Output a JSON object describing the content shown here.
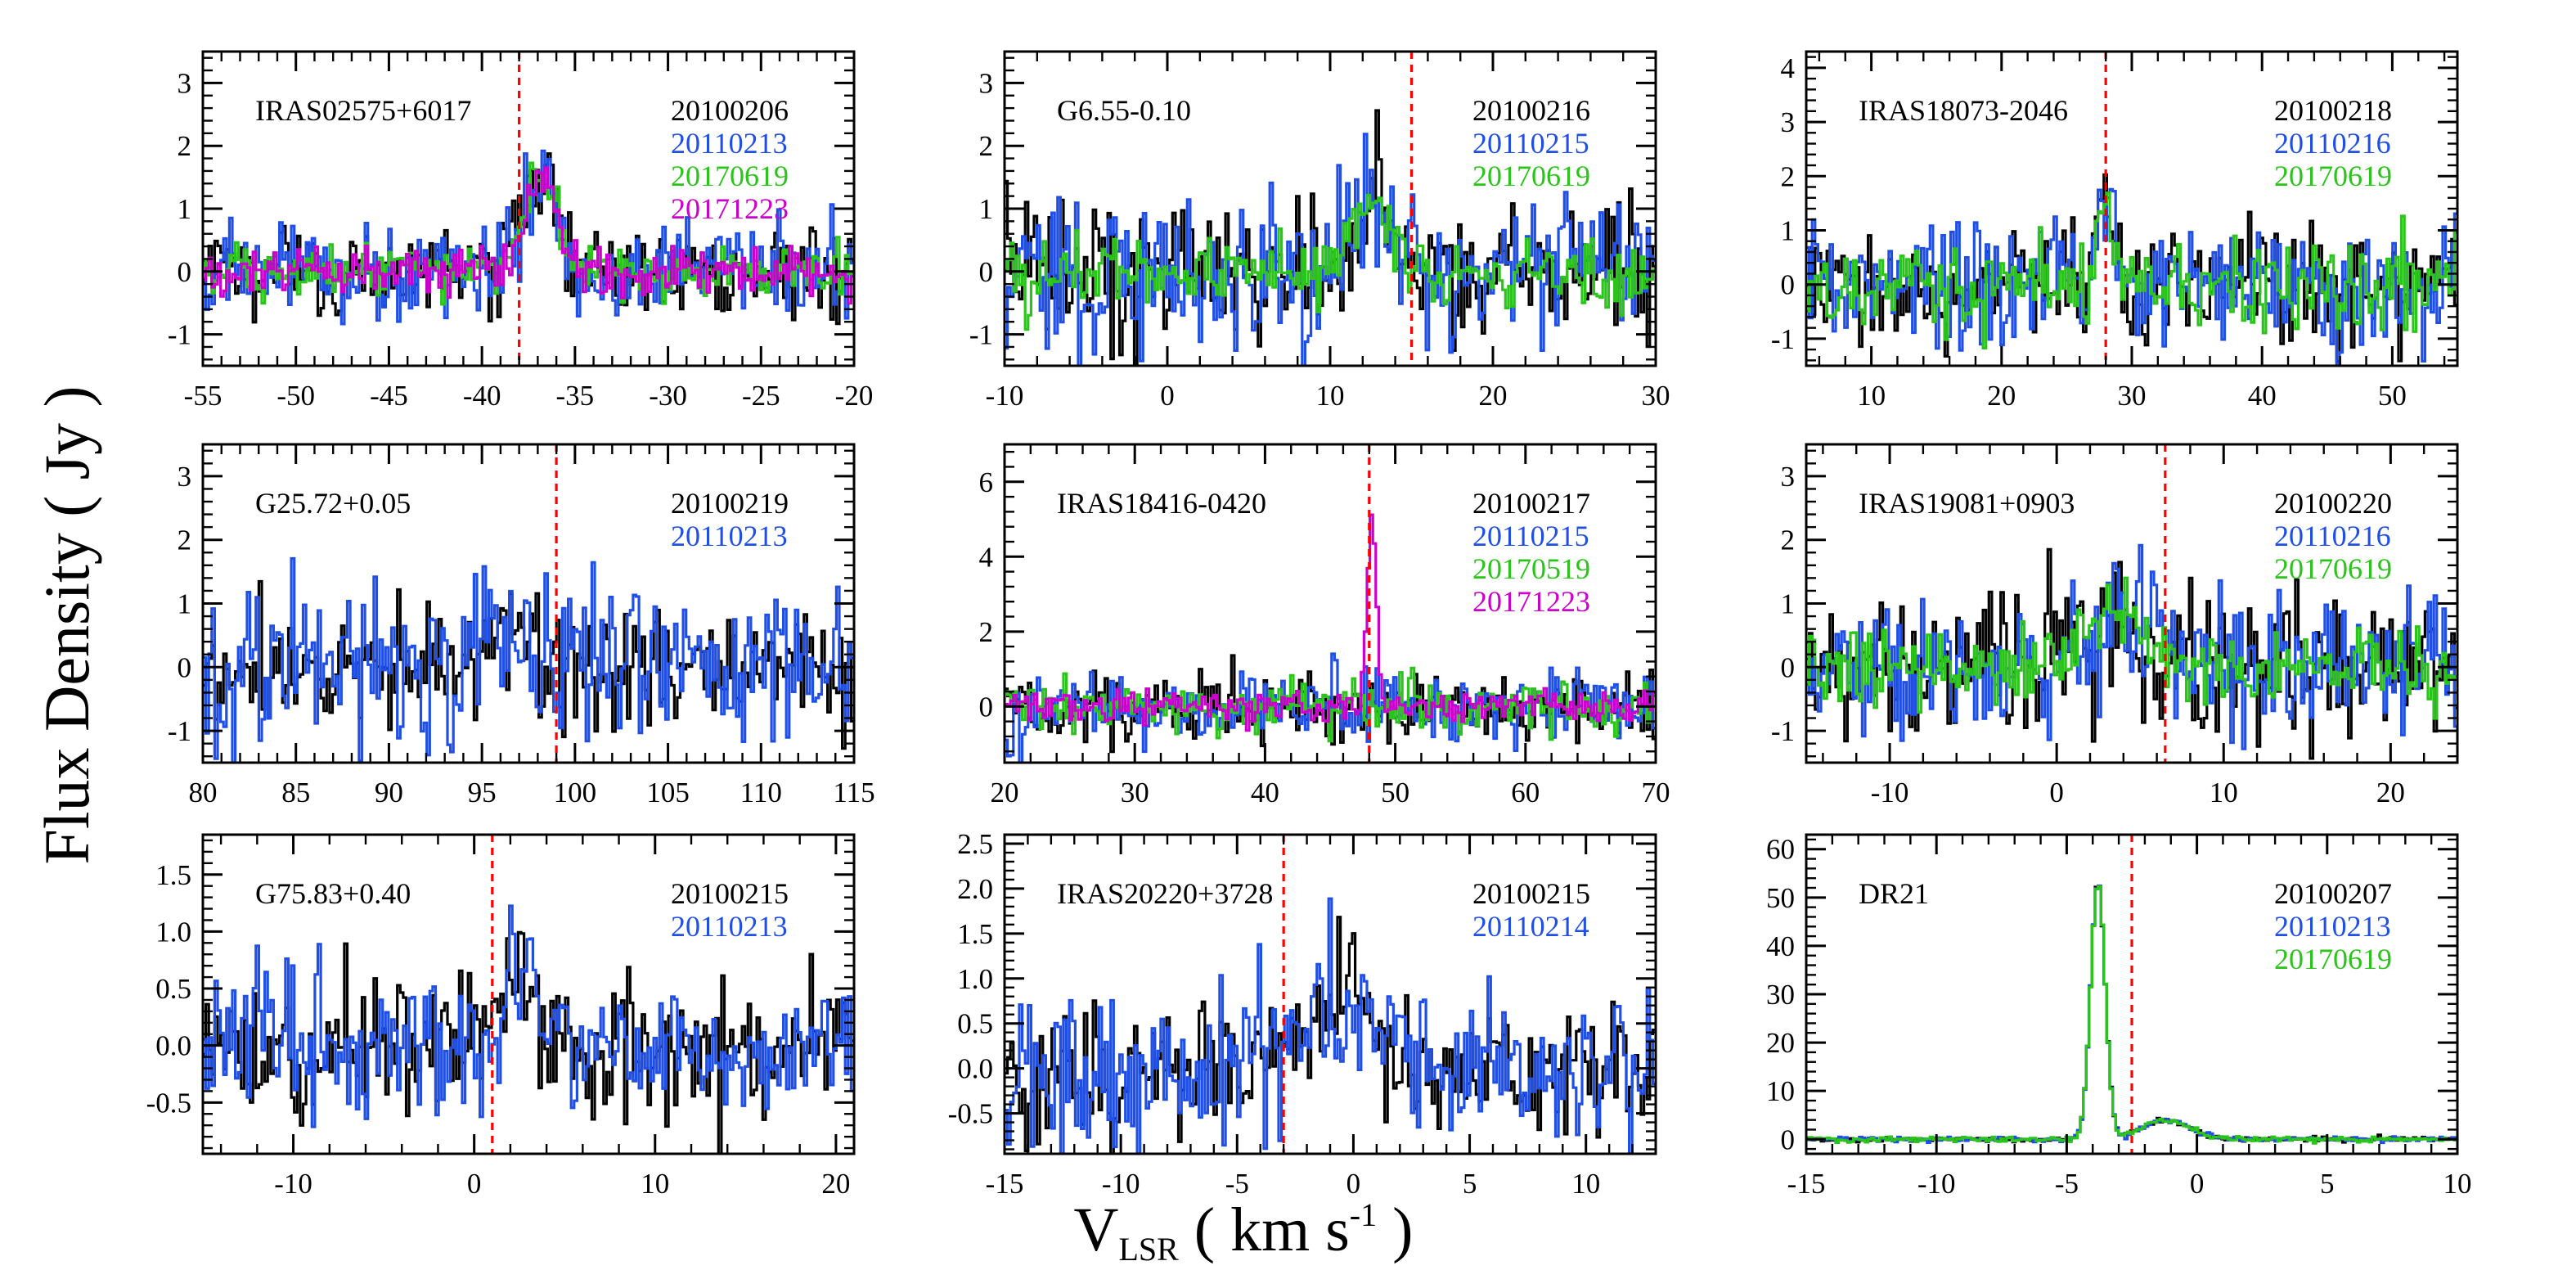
{
  "figure": {
    "ylabel": "Flux Density ( Jy )",
    "xlabel_main": "V",
    "xlabel_sub": "LSR",
    "xlabel_rest": " ( km s",
    "xlabel_sup": "-1",
    "xlabel_end": " )"
  },
  "colors": {
    "black": "#000000",
    "blue": "#1f4fe6",
    "green": "#2bc41b",
    "magenta": "#cc00cc",
    "marker": "#ff0000"
  },
  "chart_data": [
    {
      "type": "line",
      "source": "IRAS02575+6017",
      "xlim": [
        -55,
        -20
      ],
      "ylim": [
        -1.5,
        3.5
      ],
      "xticks": [
        -55,
        -50,
        -45,
        -40,
        -35,
        -30,
        -25,
        -20
      ],
      "xtick_labels": [
        "-55",
        "-50",
        "-45",
        "-40",
        "-35",
        "-30",
        "-25",
        "-20"
      ],
      "yticks": [
        -1,
        0,
        1,
        2,
        3
      ],
      "ytick_labels": [
        "-1",
        "0",
        "1",
        "2",
        "3"
      ],
      "vmarker": -38,
      "series": [
        {
          "name": "20100206",
          "color": "black",
          "noise": 0.35
        },
        {
          "name": "20110213",
          "color": "blue",
          "noise": 0.38
        },
        {
          "name": "20170619",
          "color": "green",
          "noise": 0.2
        },
        {
          "name": "20171223",
          "color": "magenta",
          "noise": 0.18
        }
      ],
      "peaks": [
        {
          "center": -36.8,
          "width": 0.9,
          "amp": 1.5
        }
      ]
    },
    {
      "type": "line",
      "source": "G6.55-0.10",
      "xlim": [
        -10,
        30
      ],
      "ylim": [
        -1.5,
        3.5
      ],
      "xticks": [
        -10,
        0,
        10,
        20,
        30
      ],
      "xtick_labels": [
        "-10",
        "0",
        "10",
        "20",
        "30"
      ],
      "yticks": [
        -1,
        0,
        1,
        2,
        3
      ],
      "ytick_labels": [
        "-1",
        "0",
        "1",
        "2",
        "3"
      ],
      "vmarker": 15,
      "series": [
        {
          "name": "20100216",
          "color": "black",
          "noise": 0.55
        },
        {
          "name": "20110215",
          "color": "blue",
          "noise": 0.6
        },
        {
          "name": "20170619",
          "color": "green",
          "noise": 0.3
        }
      ],
      "peaks": [
        {
          "center": 12.5,
          "width": 1.2,
          "amp": 1.0
        }
      ]
    },
    {
      "type": "line",
      "source": "IRAS18073-2046",
      "xlim": [
        5,
        55
      ],
      "ylim": [
        -1.5,
        4.3
      ],
      "xticks": [
        10,
        20,
        30,
        40,
        50
      ],
      "xtick_labels": [
        "10",
        "20",
        "30",
        "40",
        "50"
      ],
      "yticks": [
        -1,
        0,
        1,
        2,
        3,
        4
      ],
      "ytick_labels": [
        "-1",
        "0",
        "1",
        "2",
        "3",
        "4"
      ],
      "vmarker": 28,
      "series": [
        {
          "name": "20100218",
          "color": "black",
          "noise": 0.5
        },
        {
          "name": "20110216",
          "color": "blue",
          "noise": 0.65
        },
        {
          "name": "20170619",
          "color": "green",
          "noise": 0.4
        }
      ],
      "peaks": [
        {
          "center": 27.8,
          "width": 0.6,
          "amp": 1.4
        }
      ]
    },
    {
      "type": "line",
      "source": "G25.72+0.05",
      "xlim": [
        80,
        115
      ],
      "ylim": [
        -1.5,
        3.5
      ],
      "xticks": [
        80,
        85,
        90,
        95,
        100,
        105,
        110,
        115
      ],
      "xtick_labels": [
        "80",
        "85",
        "90",
        "95",
        "100",
        "105",
        "110",
        "115"
      ],
      "yticks": [
        -1,
        0,
        1,
        2,
        3
      ],
      "ytick_labels": [
        "-1",
        "0",
        "1",
        "2",
        "3"
      ],
      "vmarker": 99,
      "series": [
        {
          "name": "20100219",
          "color": "black",
          "noise": 0.45
        },
        {
          "name": "20110213",
          "color": "blue",
          "noise": 0.7
        }
      ],
      "peaks": [
        {
          "center": 96.5,
          "width": 0.8,
          "amp": 0.8
        }
      ]
    },
    {
      "type": "line",
      "source": "IRAS18416-0420",
      "xlim": [
        20,
        70
      ],
      "ylim": [
        -1.5,
        7
      ],
      "xticks": [
        20,
        30,
        40,
        50,
        60,
        70
      ],
      "xtick_labels": [
        "20",
        "30",
        "40",
        "50",
        "60",
        "70"
      ],
      "yticks": [
        0,
        2,
        4,
        6
      ],
      "ytick_labels": [
        "0",
        "2",
        "4",
        "6"
      ],
      "vmarker": 48,
      "series": [
        {
          "name": "20100217",
          "color": "black",
          "noise": 0.45
        },
        {
          "name": "20110215",
          "color": "blue",
          "noise": 0.5
        },
        {
          "name": "20170519",
          "color": "green",
          "noise": 0.35
        },
        {
          "name": "20171223",
          "color": "magenta",
          "noise": 0.2
        }
      ],
      "peaks": [
        {
          "center": 48.2,
          "width": 0.35,
          "amp": 5.1,
          "only": [
            "magenta"
          ]
        }
      ]
    },
    {
      "type": "line",
      "source": "IRAS19081+0903",
      "xlim": [
        -15,
        24
      ],
      "ylim": [
        -1.5,
        3.5
      ],
      "xticks": [
        -10,
        0,
        10,
        20
      ],
      "xtick_labels": [
        "-10",
        "0",
        "10",
        "20"
      ],
      "yticks": [
        -1,
        0,
        1,
        2,
        3
      ],
      "ytick_labels": [
        "-1",
        "0",
        "1",
        "2",
        "3"
      ],
      "vmarker": 6.5,
      "series": [
        {
          "name": "20100220",
          "color": "black",
          "noise": 0.6
        },
        {
          "name": "20110216",
          "color": "blue",
          "noise": 0.55
        },
        {
          "name": "20170619",
          "color": "green",
          "noise": 0.3
        }
      ],
      "peaks": [
        {
          "center": 3.5,
          "width": 2.0,
          "amp": 0.8
        }
      ]
    },
    {
      "type": "line",
      "source": "G75.83+0.40",
      "xlim": [
        -15,
        21
      ],
      "ylim": [
        -0.95,
        1.85
      ],
      "xticks": [
        -10,
        0,
        10,
        20
      ],
      "xtick_labels": [
        "-10",
        "0",
        "10",
        "20"
      ],
      "yticks": [
        -0.5,
        0.0,
        0.5,
        1.0,
        1.5
      ],
      "ytick_labels": [
        "-0.5",
        "0.0",
        "0.5",
        "1.0",
        "1.5"
      ],
      "vmarker": 1,
      "series": [
        {
          "name": "20100215",
          "color": "black",
          "noise": 0.3
        },
        {
          "name": "20110213",
          "color": "blue",
          "noise": 0.3
        }
      ],
      "peaks": [
        {
          "center": 2.8,
          "width": 1.0,
          "amp": 0.7
        }
      ]
    },
    {
      "type": "line",
      "source": "IRAS20220+3728",
      "xlim": [
        -15,
        13
      ],
      "ylim": [
        -0.95,
        2.6
      ],
      "xticks": [
        -15,
        -10,
        -5,
        0,
        5,
        10
      ],
      "xtick_labels": [
        "-15",
        "-10",
        "-5",
        "0",
        "5",
        "10"
      ],
      "yticks": [
        -0.5,
        0.0,
        0.5,
        1.0,
        1.5,
        2.0,
        2.5
      ],
      "ytick_labels": [
        "-0.5",
        "0.0",
        "0.5",
        "1.0",
        "1.5",
        "2.0",
        "2.5"
      ],
      "vmarker": -3,
      "series": [
        {
          "name": "20100215",
          "color": "black",
          "noise": 0.4
        },
        {
          "name": "20110214",
          "color": "blue",
          "noise": 0.45
        }
      ],
      "peaks": [
        {
          "center": -0.5,
          "width": 1.6,
          "amp": 0.7
        }
      ]
    },
    {
      "type": "line",
      "source": "DR21",
      "xlim": [
        -15,
        10
      ],
      "ylim": [
        -3,
        63
      ],
      "xticks": [
        -15,
        -10,
        -5,
        0,
        5,
        10
      ],
      "xtick_labels": [
        "-15",
        "-10",
        "-5",
        "0",
        "5",
        "10"
      ],
      "yticks": [
        0,
        10,
        20,
        30,
        40,
        50,
        60
      ],
      "ytick_labels": [
        "0",
        "10",
        "20",
        "30",
        "40",
        "50",
        "60"
      ],
      "vmarker": -2.5,
      "series": [
        {
          "name": "20100207",
          "color": "black",
          "noise": 0.25
        },
        {
          "name": "20110213",
          "color": "blue",
          "noise": 0.25
        },
        {
          "name": "20170619",
          "color": "green",
          "noise": 0.25
        }
      ],
      "peaks": [
        {
          "center": -3.8,
          "width": 0.28,
          "amp": 53
        },
        {
          "center": -1.2,
          "width": 0.9,
          "amp": 4
        }
      ]
    }
  ]
}
